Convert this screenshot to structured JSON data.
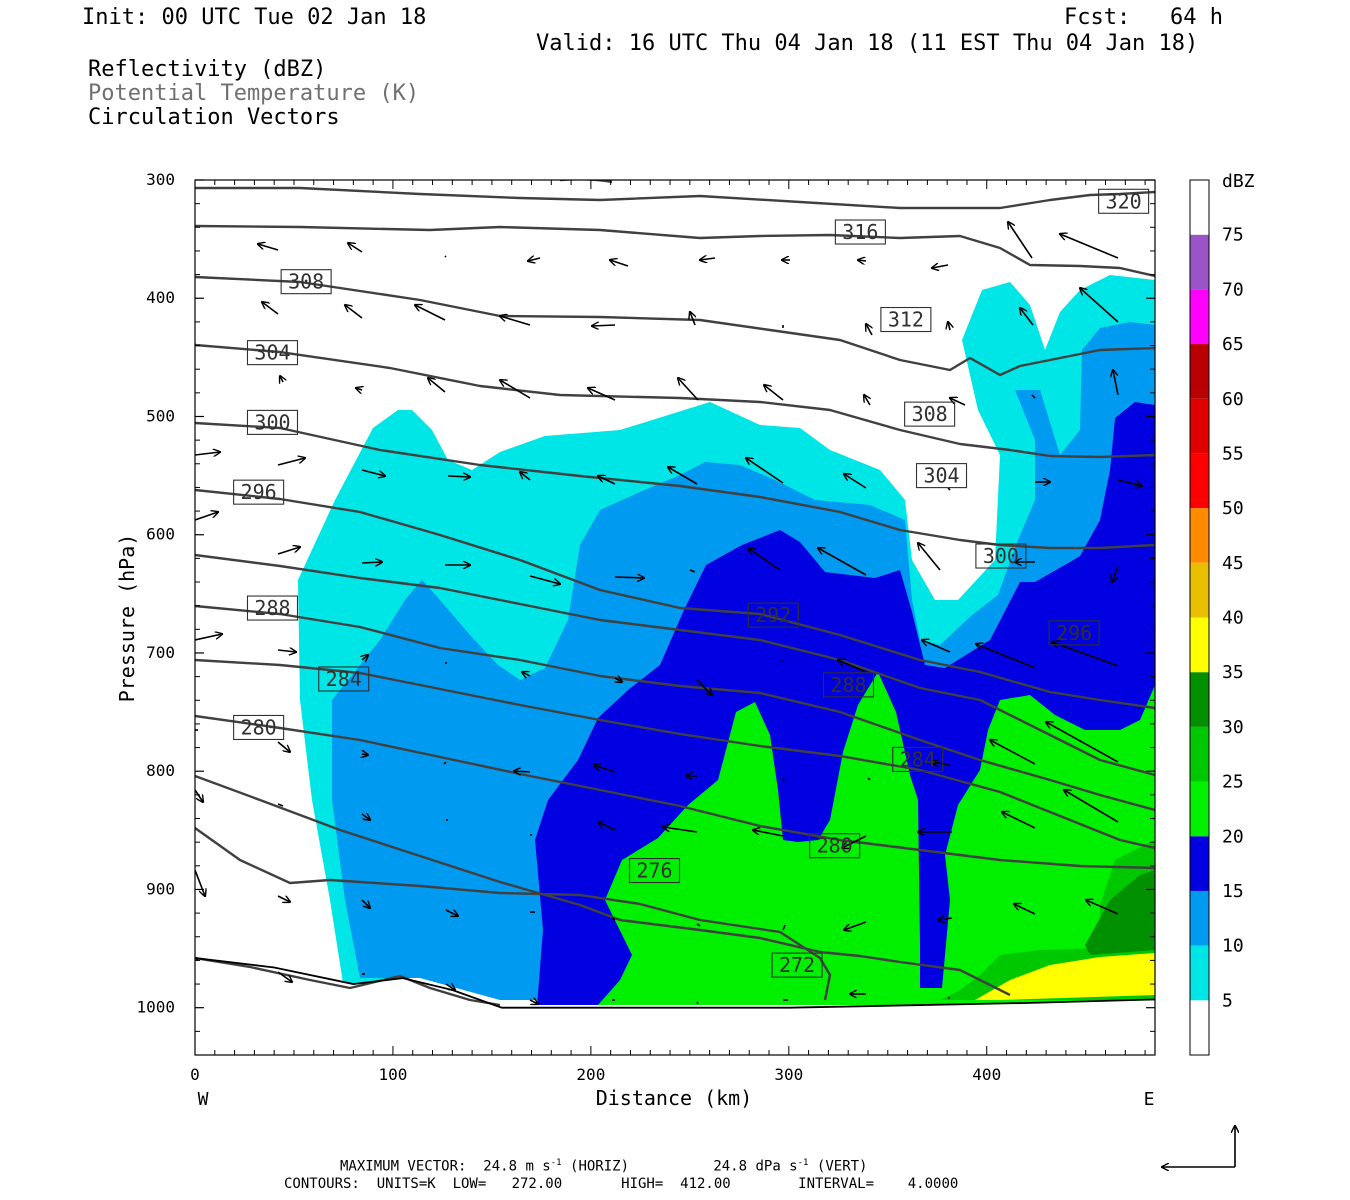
{
  "header": {
    "init": "Init: 00 UTC Tue 02 Jan 18",
    "fcst": "Fcst:   64 h",
    "valid": "Valid: 16 UTC Thu 04 Jan 18 (11 EST Thu 04 Jan 18)",
    "fields": [
      "Reflectivity (dBZ)",
      "Potential Temperature (K)",
      "Circulation Vectors"
    ]
  },
  "chart_data": {
    "type": "heatmap",
    "title": "",
    "xlabel": "Distance (km)",
    "ylabel": "Pressure (hPa)",
    "xlim": [
      0,
      485
    ],
    "ylim": [
      1040,
      300
    ],
    "x_ticks": [
      0,
      100,
      200,
      300,
      400
    ],
    "y_ticks": [
      300,
      400,
      500,
      600,
      700,
      800,
      900,
      1000
    ],
    "x_end_labels": {
      "left": "W",
      "right": "E"
    },
    "colorbar": {
      "label": "dBZ",
      "levels": [
        5,
        10,
        15,
        20,
        25,
        30,
        35,
        40,
        45,
        50,
        55,
        60,
        65,
        70,
        75
      ],
      "colors": [
        "#ffffff",
        "#00e5e5",
        "#009bf0",
        "#0000e0",
        "#00f000",
        "#00c800",
        "#009000",
        "#ffff00",
        "#e8c000",
        "#ff8c00",
        "#ff0000",
        "#e00000",
        "#b80000",
        "#ff00ff",
        "#9955c8",
        "#ffffff"
      ]
    },
    "theta_contours": {
      "units": "K",
      "low": 272,
      "high": 412,
      "interval": 4,
      "labels": [
        {
          "value": "320",
          "x": 455,
          "p": 318
        },
        {
          "value": "316",
          "x": 322,
          "p": 344
        },
        {
          "value": "312",
          "x": 345,
          "p": 418
        },
        {
          "value": "308",
          "x": 42,
          "p": 386
        },
        {
          "value": "308",
          "x": 357,
          "p": 498
        },
        {
          "value": "304",
          "x": 25,
          "p": 446
        },
        {
          "value": "304",
          "x": 363,
          "p": 550
        },
        {
          "value": "300",
          "x": 25,
          "p": 505
        },
        {
          "value": "300",
          "x": 393,
          "p": 618
        },
        {
          "value": "296",
          "x": 18,
          "p": 564
        },
        {
          "value": "296",
          "x": 430,
          "p": 683
        },
        {
          "value": "292",
          "x": 278,
          "p": 668
        },
        {
          "value": "288",
          "x": 25,
          "p": 662
        },
        {
          "value": "288",
          "x": 316,
          "p": 727
        },
        {
          "value": "284",
          "x": 61,
          "p": 722
        },
        {
          "value": "284",
          "x": 351,
          "p": 790
        },
        {
          "value": "280",
          "x": 18,
          "p": 763
        },
        {
          "value": "280",
          "x": 309,
          "p": 863
        },
        {
          "value": "276",
          "x": 218,
          "p": 884
        },
        {
          "value": "272",
          "x": 290,
          "p": 964
        }
      ]
    },
    "ground_surface": [
      [
        0,
        958
      ],
      [
        40,
        966
      ],
      [
        80,
        980
      ],
      [
        105,
        975
      ],
      [
        130,
        985
      ],
      [
        155,
        1000
      ],
      [
        300,
        1000
      ],
      [
        420,
        996
      ],
      [
        485,
        993
      ]
    ]
  },
  "footer": {
    "max_vector_label": "MAXIMUM VECTOR:",
    "max_vector_horiz_value": "24.8 m s",
    "max_vector_horiz_unit": "(HORIZ)",
    "max_vector_vert_value": "24.8 dPa s",
    "max_vector_vert_unit": "(VERT)",
    "superscript": "-1",
    "contours_line": "CONTOURS:  UNITS=K  LOW=   272.00       HIGH=  412.00        INTERVAL=    4.0000"
  }
}
